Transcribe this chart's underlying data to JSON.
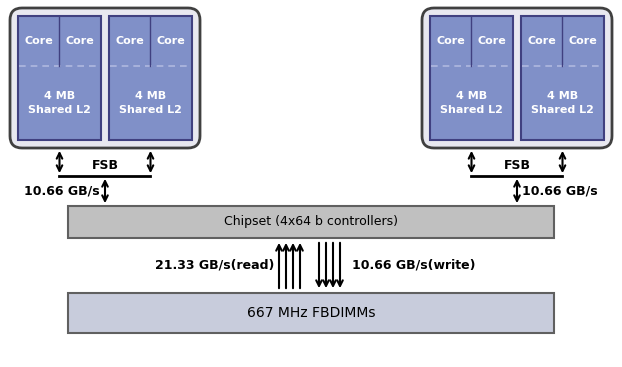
{
  "bg_color": "#ffffff",
  "core_fill": "#8090c8",
  "core_edge": "#404080",
  "core_edge_inner": "#404080",
  "chip_group_fill": "#e8e8f0",
  "chip_group_edge": "#404040",
  "chipset_fill": "#c0c0c0",
  "chipset_edge": "#606060",
  "fbdimm_fill": "#c8ccdc",
  "fbdimm_edge": "#606060",
  "arrow_color": "#000000",
  "text_color": "#000000",
  "fsb_text": "FSB",
  "chipset_text": "Chipset (4x64 b controllers)",
  "fbdimm_text": "667 MHz FBDIMMs",
  "speed_left": "10.66 GB/s",
  "speed_right": "10.66 GB/s",
  "read_label": "21.33 GB/s(read)",
  "write_label": "10.66 GB/s(write)",
  "core_label": "Core",
  "cache_label": "4 MB\nShared L2",
  "fig_w": 6.22,
  "fig_h": 3.67,
  "dpi": 100
}
